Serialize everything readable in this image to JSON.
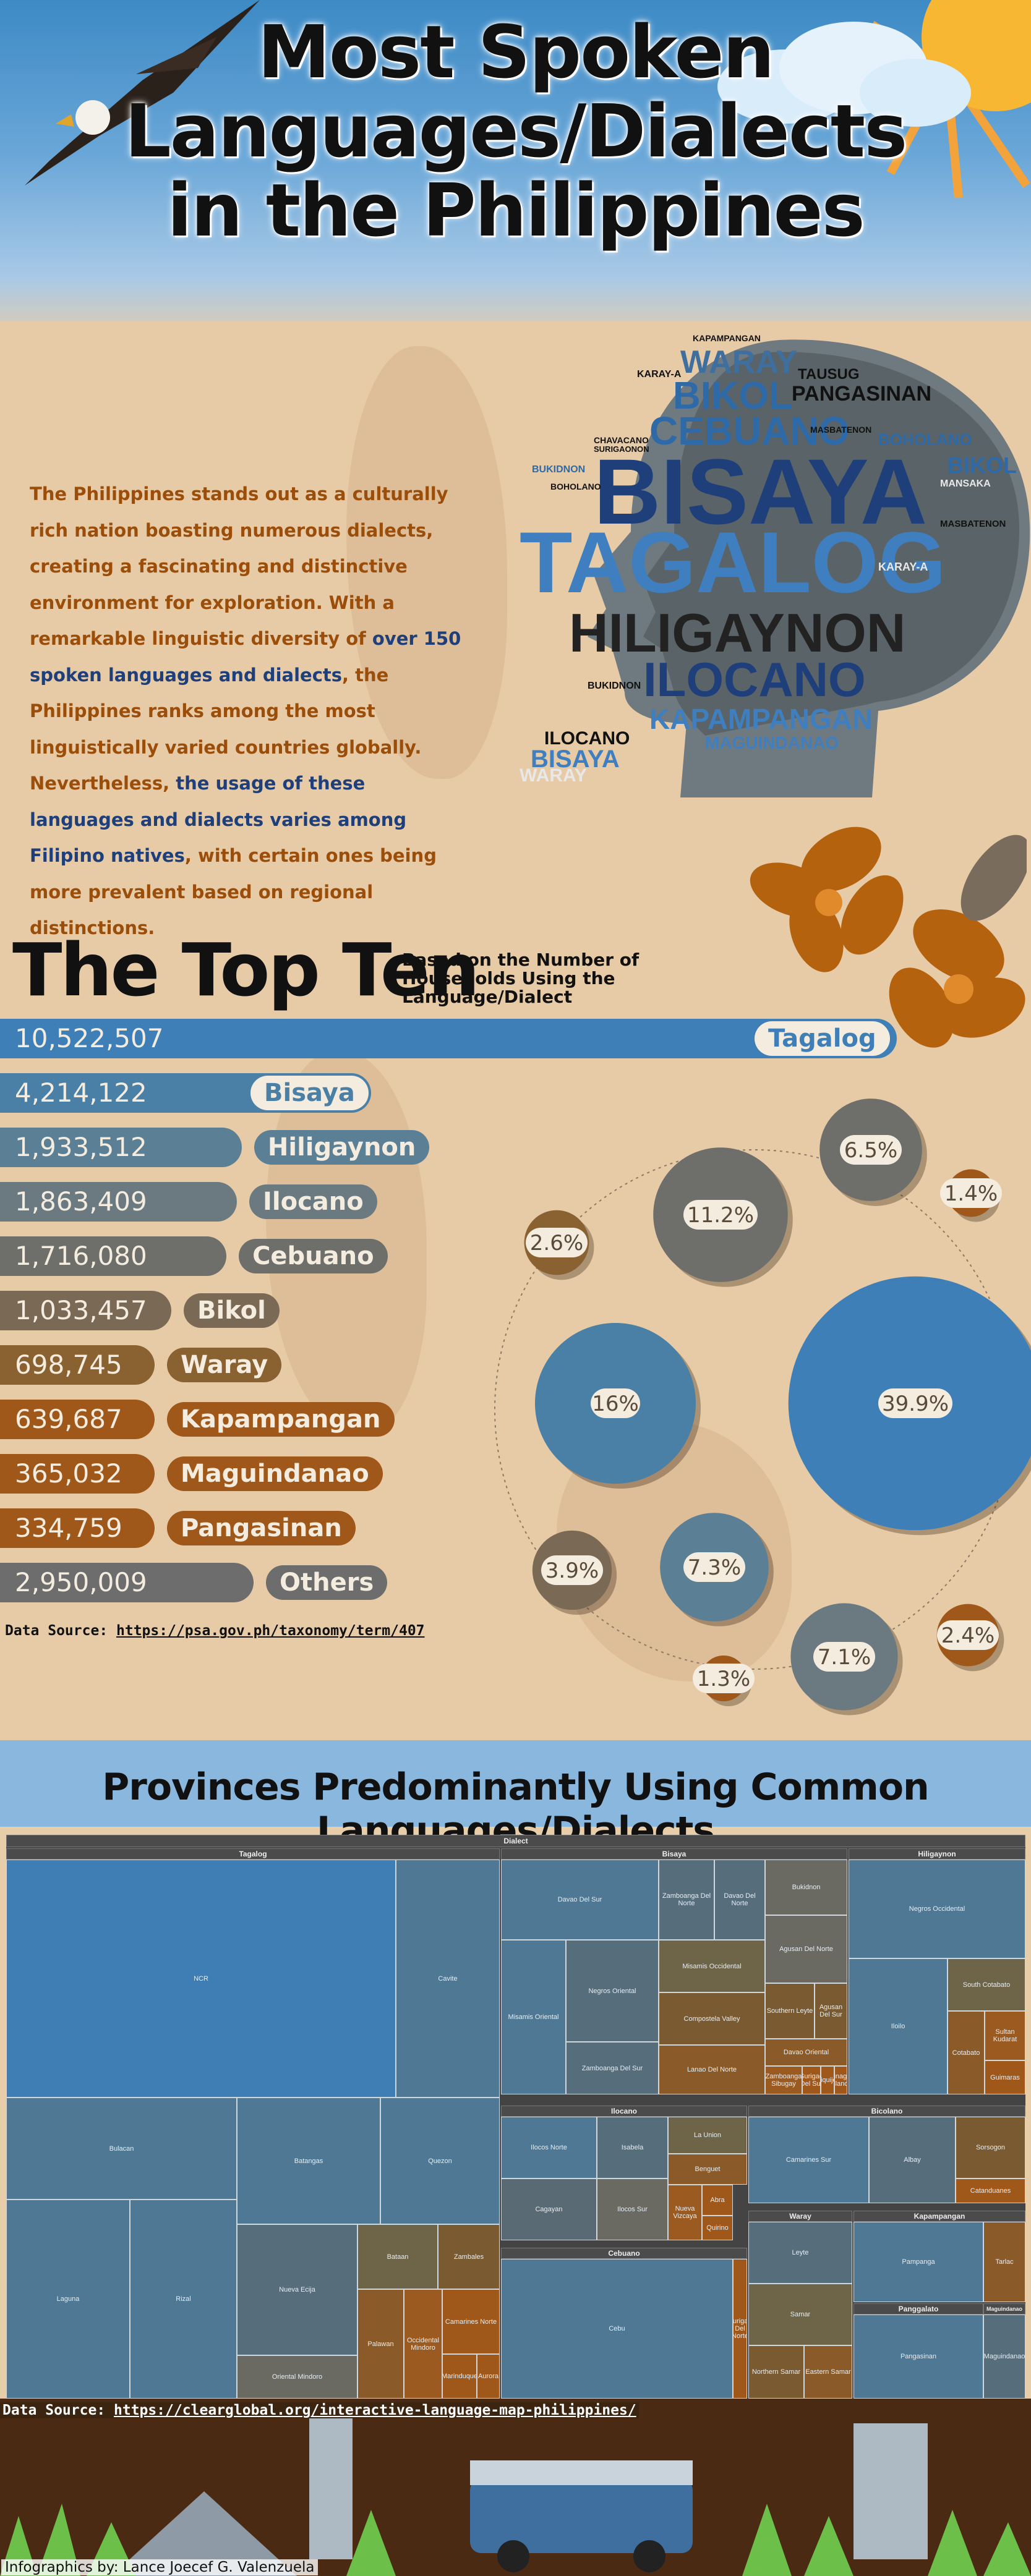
{
  "title_lines": [
    "Most Spoken",
    "Languages/Dialects",
    "in the Philippines"
  ],
  "intro": {
    "p1": "The Philippines stands out as a culturally rich nation boasting numerous dialects, creating a fascinating and distinctive environment for exploration. With a remarkable linguistic diversity of ",
    "hl1": "over 150 spoken languages and dialects",
    "p2": ", the Philippines ranks among the most linguistically varied countries globally. Nevertheless, ",
    "hl2": "the usage of these languages and dialects varies among Filipino natives",
    "p3": ", with certain ones being more prevalent based on regional distinctions."
  },
  "word_cloud": [
    {
      "w": "WARAY",
      "c": "#3e6f9f"
    },
    {
      "w": "BIKOL",
      "c": "#2e6aa8"
    },
    {
      "w": "PANGASINAN",
      "c": "#111"
    },
    {
      "w": "TAUSUG",
      "c": "#111"
    },
    {
      "w": "CEBUANO",
      "c": "#2e6aa8"
    },
    {
      "w": "BOHOLANO",
      "c": "#2e6aa8"
    },
    {
      "w": "BISAYA",
      "c": "#1e3f7a"
    },
    {
      "w": "BIKOL",
      "c": "#2e6aa8"
    },
    {
      "w": "TAGALOG",
      "c": "#3f7fbf"
    },
    {
      "w": "HILIGAYNON",
      "c": "#222"
    },
    {
      "w": "ILOCANO",
      "c": "#1e3f7a"
    },
    {
      "w": "KAPAMPANGAN",
      "c": "#3f7fbf"
    },
    {
      "w": "MAGUINDANAO",
      "c": "#3f7fbf"
    },
    {
      "w": "ILOCANO",
      "c": "#111"
    },
    {
      "w": "BISAYA",
      "c": "#3f7fbf"
    },
    {
      "w": "WARAY",
      "c": "#e8e8e8"
    },
    {
      "w": "KARAY-A",
      "c": "#111"
    },
    {
      "w": "KAPAMPANGAN",
      "c": "#111"
    },
    {
      "w": "BUKIDNON",
      "c": "#2e6aa8"
    },
    {
      "w": "BOHOLANO",
      "c": "#111"
    },
    {
      "w": "CHAVACANO",
      "c": "#111"
    },
    {
      "w": "SURIGAONON",
      "c": "#111"
    },
    {
      "w": "MASBATENON",
      "c": "#111"
    },
    {
      "w": "KARAY-A",
      "c": "#e8e8e8"
    },
    {
      "w": "MANSAKA",
      "c": "#e8e8e8"
    },
    {
      "w": "BUKIDNON",
      "c": "#111"
    },
    {
      "w": "MASBATENON",
      "c": "#111"
    }
  ],
  "top_ten": {
    "title": "The Top Ten",
    "subtitle": "Based on the Number of Households Using the Language/Dialect",
    "source_label": "Data Source: ",
    "source_url": "https://psa.gov.ph/taxonomy/term/407"
  },
  "chart_data": [
    {
      "type": "bar",
      "categories": [
        "Tagalog",
        "Bisaya",
        "Hiligaynon",
        "Ilocano",
        "Cebuano",
        "Bikol",
        "Waray",
        "Kapampangan",
        "Maguindanao",
        "Pangasinan",
        "Others"
      ],
      "values": [
        10522507,
        4214122,
        1933512,
        1863409,
        1716080,
        1033457,
        698745,
        639687,
        365032,
        334759,
        2950009
      ],
      "value_labels": [
        "10,522,507",
        "4,214,122",
        "1,933,512",
        "1,863,409",
        "1,716,080",
        "1,033,457",
        "698,745",
        "639,687",
        "365,032",
        "334,759",
        "2,950,009"
      ],
      "colors": [
        "#3d7fb6",
        "#4a7fa6",
        "#5b7f95",
        "#6a7a80",
        "#6e6e6b",
        "#7a6a55",
        "#8a6232",
        "#a0581a",
        "#a0581a",
        "#a0581a",
        "#6d6d6d"
      ]
    },
    {
      "type": "bubble",
      "labels": [
        "39.9%",
        "16%",
        "11.2%",
        "7.3%",
        "7.1%",
        "6.5%",
        "3.9%",
        "2.6%",
        "2.4%",
        "1.4%",
        "1.3%"
      ],
      "values": [
        39.9,
        16,
        11.2,
        7.3,
        7.1,
        6.5,
        3.9,
        2.6,
        2.4,
        1.4,
        1.3
      ],
      "colors": [
        "#3d7fb6",
        "#4a7fa6",
        "#6e6e6b",
        "#5b7f95",
        "#6a7a80",
        "#6e6e6b",
        "#7a6a55",
        "#8a6232",
        "#a0581a",
        "#a0581a",
        "#a0581a"
      ]
    }
  ],
  "provinces": {
    "title": "Provinces Predominantly Using Common Languages/Dialects",
    "header": "Dialect",
    "groups": {
      "tagalog": "Tagalog",
      "bisaya": "Bisaya",
      "hiligaynon": "Hiligaynon",
      "ilocano": "Ilocano",
      "bicolano": "Bicolano",
      "cebuano": "Cebuano",
      "waray": "Waray",
      "kapampangan": "Kapampangan",
      "panggalato": "Panggalato",
      "maguindanao": "Maguindanao"
    },
    "cells": {
      "ncr": "NCR",
      "cavite": "Cavite",
      "bulacan": "Bulacan",
      "batangas": "Batangas",
      "quezon": "Quezon",
      "laguna": "Laguna",
      "rizal": "Rizal",
      "nueva_ecija": "Nueva Ecija",
      "oriental_mindoro": "Oriental Mindoro",
      "aurora_b": "Bataan",
      "zambales": "Zambales",
      "palawan": "Palawan",
      "occ_mindoro": "Occidental Mindoro",
      "camarines_norte": "Camarines Norte",
      "marinduque": "Marinduque",
      "aurora": "Aurora",
      "davao_del_sur": "Davao Del Sur",
      "zamboanga_norte": "Zamboanga Del Norte",
      "davao_norte": "Davao Del Norte",
      "bukidnon": "Bukidnon",
      "misamis_oriental": "Misamis Oriental",
      "negros_oriental": "Negros Oriental",
      "agusan_norte": "Agusan Del Norte",
      "misamis_occidental": "Misamis Occidental",
      "southern_leyte": "Southern Leyte",
      "agusan_sur": "Agusan Del Sur",
      "zamboanga_sur": "Zamboanga Del Sur",
      "compostela": "Compostela Valley",
      "davao_oriental": "Davao Oriental",
      "lanao_norte": "Lanao Del Norte",
      "zamboanga_sibugay": "Zamboanga Sibugay",
      "surigao_sur": "Surigao Del Sur",
      "siquijor": "Siquijor",
      "dinagat": "Dinagat Islands",
      "surigao_norte": "Surigao Del Norte",
      "negros_occidental": "Negros Occidental",
      "iloilo": "Iloilo",
      "south_cotabato": "South Cotabato",
      "cotabato": "Cotabato",
      "sultan_kudarat": "Sultan Kudarat",
      "guimaras": "Guimaras",
      "ilocos_norte": "Ilocos Norte",
      "isabela": "Isabela",
      "la_union": "La Union",
      "benguet": "Benguet",
      "cagayan": "Cagayan",
      "ilocos_sur": "Ilocos Sur",
      "nueva_vizcaya": "Nueva Vizcaya",
      "abra": "Abra",
      "quirino": "Quirino",
      "camarines_sur": "Camarines Sur",
      "albay": "Albay",
      "sorsogon": "Sorsogon",
      "catanduanes": "Catanduanes",
      "cebu": "Cebu",
      "leyte": "Leyte",
      "samar": "Samar",
      "northern_samar": "Northern Samar",
      "eastern_samar": "Eastern Samar",
      "pampanga": "Pampanga",
      "tarlac": "Tarlac",
      "pangasinan": "Pangasinan",
      "maguindanao": "Maguindanao"
    },
    "source_label": "Data Source: ",
    "source_url": "https://clearglobal.org/interactive-language-map-philippines/"
  },
  "credit": "Infographics by: Lance Joecef G. Valenzuela"
}
